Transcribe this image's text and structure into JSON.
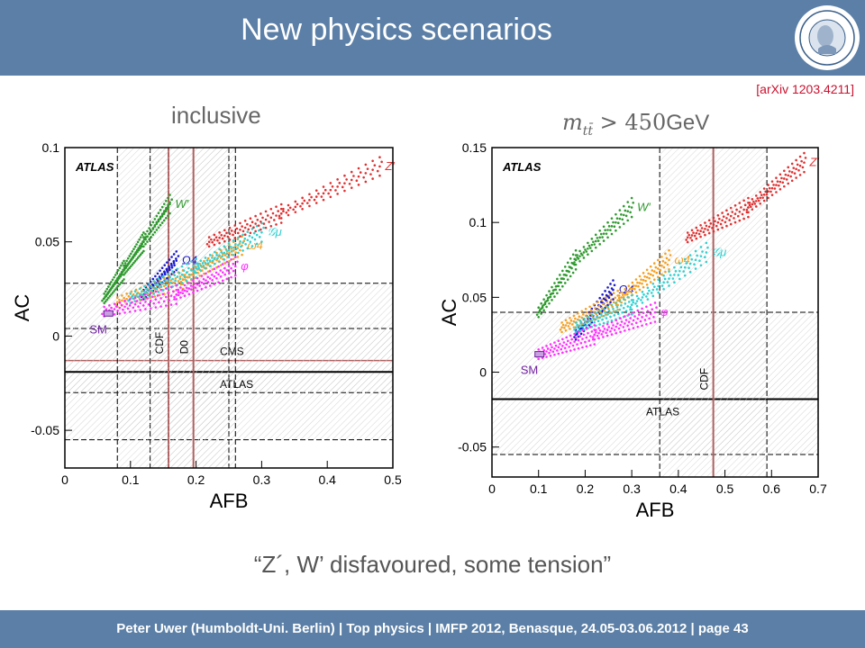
{
  "header": {
    "title": "New physics scenarios"
  },
  "reference": "[arXiv 1203.4211]",
  "panel_labels": {
    "left": "inclusive",
    "right_math": "m",
    "right_sub": "tt̄",
    "right_rel": " > 450",
    "right_unit": "GeV"
  },
  "conclusion": "“Z´, W’ disfavoured, some tension”",
  "footer": "Peter Uwer  (Humboldt-Uni. Berlin)  |  Top physics   |  IMFP 2012, Benasque, 24.05-03.06.2012  |  page 43",
  "chart_data": [
    {
      "type": "scatter",
      "title": "inclusive",
      "xlabel": "AFB",
      "ylabel": "AC",
      "xlim": [
        0,
        0.5
      ],
      "ylim": [
        -0.07,
        0.1
      ],
      "xticks": [
        "0",
        "0.1",
        "0.2",
        "0.3",
        "0.4",
        "0.5"
      ],
      "yticks": [
        "-0.05",
        "0",
        "0.05",
        "0.1"
      ],
      "inset_label": "ATLAS",
      "series": [
        {
          "name": "W′",
          "color": "#2e9a2e",
          "points": [
            [
              0.06,
              0.02
            ],
            [
              0.09,
              0.035
            ],
            [
              0.12,
              0.05
            ],
            [
              0.16,
              0.07
            ]
          ]
        },
        {
          "name": "Ω4",
          "color": "#1a1ad0",
          "points": [
            [
              0.12,
              0.022
            ],
            [
              0.17,
              0.04
            ]
          ]
        },
        {
          "name": "ω4",
          "color": "#f5a020",
          "points": [
            [
              0.08,
              0.018
            ],
            [
              0.18,
              0.03
            ],
            [
              0.27,
              0.048
            ]
          ]
        },
        {
          "name": "𝒢μ",
          "color": "#30d0d0",
          "points": [
            [
              0.1,
              0.02
            ],
            [
              0.2,
              0.036
            ],
            [
              0.3,
              0.055
            ]
          ]
        },
        {
          "name": "φ",
          "color": "#ff30ff",
          "points": [
            [
              0.06,
              0.013
            ],
            [
              0.17,
              0.022
            ],
            [
              0.26,
              0.037
            ]
          ]
        },
        {
          "name": "Z′",
          "color": "#e03030",
          "points": [
            [
              0.22,
              0.05
            ],
            [
              0.33,
              0.065
            ],
            [
              0.48,
              0.09
            ]
          ]
        }
      ],
      "sm_point": {
        "label": "SM",
        "x": 0.065,
        "y": 0.012
      },
      "measurements": [
        {
          "label": "CMS",
          "axis": "y",
          "value": -0.013,
          "band": [
            0.004,
            -0.03
          ]
        },
        {
          "label": "ATLAS",
          "axis": "y",
          "value": -0.019,
          "band": [
            0.028,
            -0.055
          ]
        },
        {
          "label": "CDF",
          "axis": "x",
          "value": 0.158,
          "band": [
            0.13,
            0.25
          ]
        },
        {
          "label": "D0",
          "axis": "x",
          "value": 0.196,
          "band": [
            0.08,
            0.26
          ]
        }
      ]
    },
    {
      "type": "scatter",
      "title": "m_tt̄ > 450 GeV",
      "xlabel": "AFB",
      "ylabel": "AC",
      "xlim": [
        0,
        0.7
      ],
      "ylim": [
        -0.07,
        0.15
      ],
      "xticks": [
        "0",
        "0.1",
        "0.2",
        "0.3",
        "0.4",
        "0.5",
        "0.6",
        "0.7"
      ],
      "yticks": [
        "-0.05",
        "0",
        "0.05",
        "0.1",
        "0.15"
      ],
      "inset_label": "ATLAS",
      "series": [
        {
          "name": "W′",
          "color": "#2e9a2e",
          "points": [
            [
              0.1,
              0.04
            ],
            [
              0.18,
              0.075
            ],
            [
              0.3,
              0.11
            ]
          ]
        },
        {
          "name": "Ω4",
          "color": "#1a1ad0",
          "points": [
            [
              0.18,
              0.025
            ],
            [
              0.26,
              0.055
            ]
          ]
        },
        {
          "name": "ω4",
          "color": "#f5a020",
          "points": [
            [
              0.15,
              0.03
            ],
            [
              0.27,
              0.048
            ],
            [
              0.38,
              0.075
            ]
          ]
        },
        {
          "name": "𝒢μ",
          "color": "#30d0d0",
          "points": [
            [
              0.18,
              0.03
            ],
            [
              0.3,
              0.045
            ],
            [
              0.46,
              0.08
            ]
          ]
        },
        {
          "name": "φ",
          "color": "#ff30ff",
          "points": [
            [
              0.1,
              0.012
            ],
            [
              0.22,
              0.025
            ],
            [
              0.35,
              0.04
            ]
          ]
        },
        {
          "name": "Z′",
          "color": "#e03030",
          "points": [
            [
              0.42,
              0.09
            ],
            [
              0.55,
              0.11
            ],
            [
              0.67,
              0.14
            ]
          ]
        }
      ],
      "sm_point": {
        "label": "SM",
        "x": 0.1,
        "y": 0.012
      },
      "measurements": [
        {
          "label": "ATLAS",
          "axis": "y",
          "value": -0.018,
          "band": [
            0.04,
            -0.055
          ]
        },
        {
          "label": "CDF",
          "axis": "x",
          "value": 0.475,
          "band": [
            0.36,
            0.59
          ]
        }
      ]
    }
  ]
}
